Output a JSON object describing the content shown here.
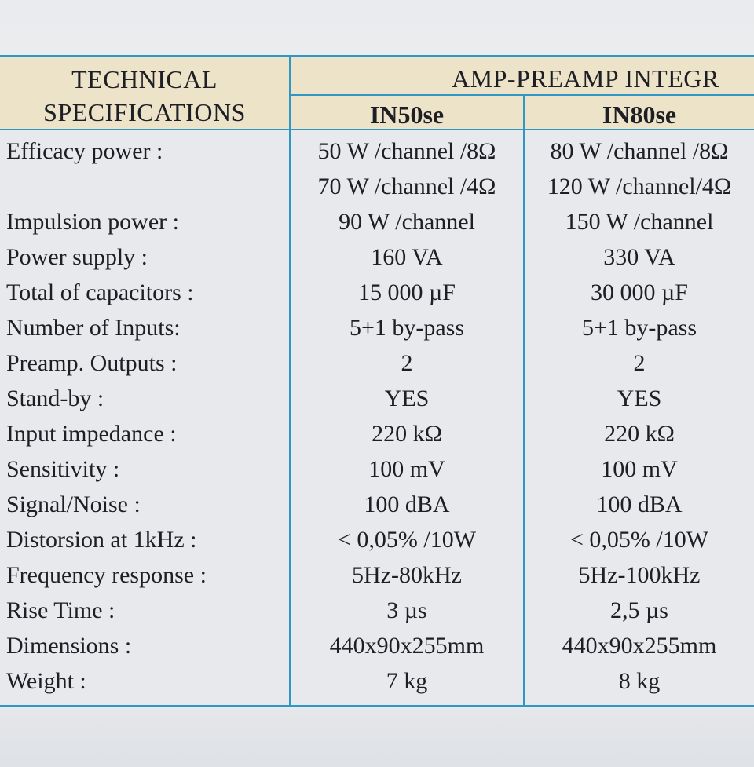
{
  "header": {
    "left_line1": "TECHNICAL",
    "left_line2": "SPECIFICATIONS",
    "group_title": "AMP-PREAMP INTEGR",
    "model_1": "IN50se",
    "model_2": "IN80se"
  },
  "rows": [
    {
      "label": "Efficacy power :",
      "v1": "50 W /channel /8Ω",
      "v2": "80 W /channel /8Ω"
    },
    {
      "label": "",
      "v1": "70 W /channel /4Ω",
      "v2": "120 W /channel/4Ω"
    },
    {
      "label": "Impulsion power :",
      "v1": "90 W /channel",
      "v2": "150 W /channel"
    },
    {
      "label": "Power supply :",
      "v1": "160 VA",
      "v2": "330 VA"
    },
    {
      "label": "Total of capacitors :",
      "v1": "15 000 µF",
      "v2": "30 000 µF"
    },
    {
      "label": "Number of Inputs:",
      "v1": "5+1 by-pass",
      "v2": "5+1 by-pass"
    },
    {
      "label": "Preamp. Outputs :",
      "v1": "2",
      "v2": "2"
    },
    {
      "label": "Stand-by :",
      "v1": "YES",
      "v2": "YES"
    },
    {
      "label": "Input impedance :",
      "v1": "220 kΩ",
      "v2": "220 kΩ"
    },
    {
      "label": "Sensitivity :",
      "v1": "100 mV",
      "v2": "100 mV"
    },
    {
      "label": "Signal/Noise :",
      "v1": "100 dBA",
      "v2": "100 dBA"
    },
    {
      "label": "Distorsion at 1kHz :",
      "v1": "< 0,05% /10W",
      "v2": "< 0,05% /10W"
    },
    {
      "label": "Frequency response :",
      "v1": "5Hz-80kHz",
      "v2": "5Hz-100kHz"
    },
    {
      "label": "Rise Time :",
      "v1": "3 µs",
      "v2": "2,5 µs"
    },
    {
      "label": "Dimensions :",
      "v1": "440x90x255mm",
      "v2": "440x90x255mm"
    },
    {
      "label": "Weight :",
      "v1": "7 kg",
      "v2": "8 kg"
    }
  ],
  "colors": {
    "rule": "#2f97c6",
    "header_fill": "#ece3c9",
    "paper": "#e7e9ec",
    "ink": "#1d1f24"
  }
}
